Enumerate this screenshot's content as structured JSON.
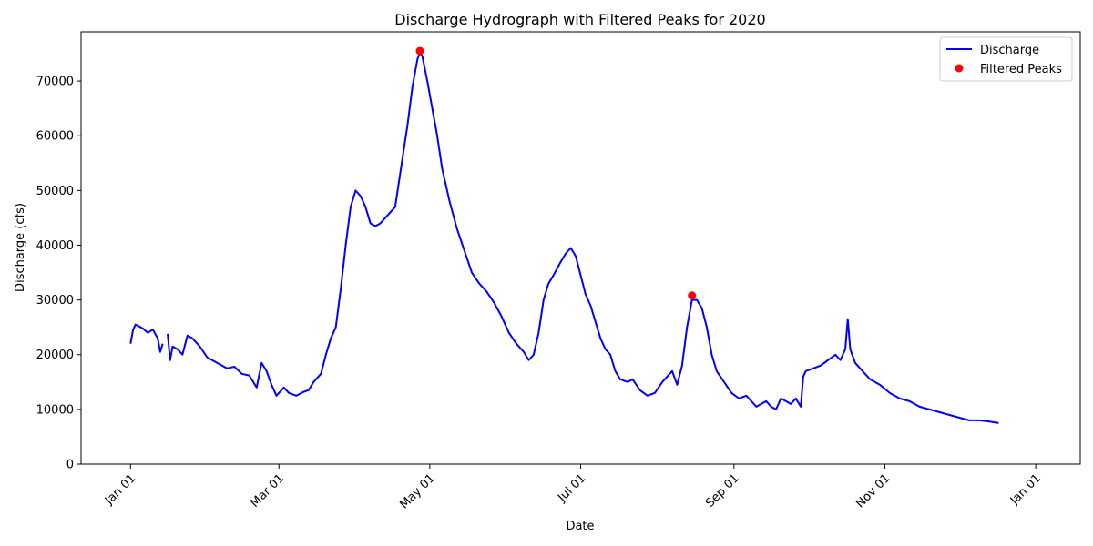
{
  "chart_data": {
    "type": "line",
    "title": "Discharge Hydrograph with Filtered Peaks for 2020",
    "xlabel": "Date",
    "ylabel": "Discharge (cfs)",
    "xlim": [
      "2019-12-12",
      "2021-01-19"
    ],
    "ylim": [
      0,
      79000
    ],
    "grid": false,
    "legend_position": "top-right",
    "x_ticks": [
      {
        "date": "2020-01-01",
        "label": "Jan 01"
      },
      {
        "date": "2020-03-01",
        "label": "Mar 01"
      },
      {
        "date": "2020-05-01",
        "label": "May 01"
      },
      {
        "date": "2020-07-01",
        "label": "Jul 01"
      },
      {
        "date": "2020-09-01",
        "label": "Sep 01"
      },
      {
        "date": "2020-11-01",
        "label": "Nov 01"
      },
      {
        "date": "2021-01-01",
        "label": "Jan 01"
      }
    ],
    "y_ticks": [
      0,
      10000,
      20000,
      30000,
      40000,
      50000,
      60000,
      70000
    ],
    "series": [
      {
        "name": "Discharge",
        "style": "line",
        "color": "#0000ff",
        "segments": [
          [
            [
              "2020-01-01",
              22000
            ],
            [
              "2020-01-02",
              24500
            ],
            [
              "2020-01-03",
              25500
            ],
            [
              "2020-01-06",
              24800
            ],
            [
              "2020-01-08",
              24000
            ],
            [
              "2020-01-10",
              24600
            ],
            [
              "2020-01-12",
              23000
            ],
            [
              "2020-01-13",
              20500
            ],
            [
              "2020-01-14",
              22000
            ]
          ],
          [
            [
              "2020-01-16",
              23800
            ],
            [
              "2020-01-17",
              19000
            ],
            [
              "2020-01-18",
              21500
            ],
            [
              "2020-01-20",
              21000
            ],
            [
              "2020-01-22",
              20000
            ],
            [
              "2020-01-24",
              23500
            ],
            [
              "2020-01-26",
              23000
            ],
            [
              "2020-01-29",
              21500
            ],
            [
              "2020-02-01",
              19500
            ],
            [
              "2020-02-05",
              18500
            ],
            [
              "2020-02-09",
              17500
            ],
            [
              "2020-02-12",
              17800
            ],
            [
              "2020-02-15",
              16500
            ],
            [
              "2020-02-18",
              16200
            ],
            [
              "2020-02-21",
              14000
            ],
            [
              "2020-02-23",
              18500
            ],
            [
              "2020-02-25",
              17000
            ],
            [
              "2020-02-27",
              14500
            ],
            [
              "2020-02-29",
              12500
            ],
            [
              "2020-03-03",
              14000
            ],
            [
              "2020-03-05",
              13000
            ],
            [
              "2020-03-08",
              12500
            ],
            [
              "2020-03-11",
              13200
            ],
            [
              "2020-03-13",
              13500
            ],
            [
              "2020-03-15",
              15000
            ],
            [
              "2020-03-18",
              16500
            ],
            [
              "2020-03-20",
              20000
            ],
            [
              "2020-03-22",
              23000
            ],
            [
              "2020-03-24",
              25000
            ],
            [
              "2020-03-26",
              32000
            ],
            [
              "2020-03-28",
              40000
            ],
            [
              "2020-03-30",
              47000
            ],
            [
              "2020-04-01",
              50000
            ],
            [
              "2020-04-03",
              49000
            ],
            [
              "2020-04-05",
              47000
            ],
            [
              "2020-04-07",
              44000
            ],
            [
              "2020-04-09",
              43500
            ],
            [
              "2020-04-11",
              44000
            ],
            [
              "2020-04-13",
              45000
            ],
            [
              "2020-04-15",
              46000
            ],
            [
              "2020-04-17",
              47000
            ],
            [
              "2020-04-19",
              53000
            ],
            [
              "2020-04-22",
              62000
            ],
            [
              "2020-04-24",
              69000
            ],
            [
              "2020-04-26",
              74000
            ],
            [
              "2020-04-27",
              75200
            ],
            [
              "2020-04-28",
              74500
            ],
            [
              "2020-04-30",
              70000
            ],
            [
              "2020-05-02",
              65000
            ],
            [
              "2020-05-04",
              60000
            ],
            [
              "2020-05-06",
              54000
            ],
            [
              "2020-05-09",
              48000
            ],
            [
              "2020-05-12",
              43000
            ],
            [
              "2020-05-15",
              39000
            ],
            [
              "2020-05-18",
              35000
            ],
            [
              "2020-05-21",
              33000
            ],
            [
              "2020-05-24",
              31500
            ],
            [
              "2020-05-27",
              29500
            ],
            [
              "2020-05-30",
              27000
            ],
            [
              "2020-06-02",
              24000
            ],
            [
              "2020-06-05",
              22000
            ],
            [
              "2020-06-08",
              20500
            ],
            [
              "2020-06-10",
              19000
            ],
            [
              "2020-06-12",
              20000
            ],
            [
              "2020-06-14",
              24000
            ],
            [
              "2020-06-16",
              30000
            ],
            [
              "2020-06-18",
              33000
            ],
            [
              "2020-06-20",
              34500
            ],
            [
              "2020-06-23",
              37000
            ],
            [
              "2020-06-25",
              38500
            ],
            [
              "2020-06-27",
              39500
            ],
            [
              "2020-06-29",
              38000
            ],
            [
              "2020-07-01",
              34500
            ],
            [
              "2020-07-03",
              31000
            ],
            [
              "2020-07-05",
              29000
            ],
            [
              "2020-07-07",
              26000
            ],
            [
              "2020-07-09",
              23000
            ],
            [
              "2020-07-11",
              21000
            ],
            [
              "2020-07-13",
              20000
            ],
            [
              "2020-07-15",
              17000
            ],
            [
              "2020-07-17",
              15500
            ],
            [
              "2020-07-20",
              15000
            ],
            [
              "2020-07-22",
              15500
            ],
            [
              "2020-07-25",
              13500
            ],
            [
              "2020-07-28",
              12500
            ],
            [
              "2020-07-31",
              13000
            ],
            [
              "2020-08-03",
              15000
            ],
            [
              "2020-08-05",
              16000
            ],
            [
              "2020-08-07",
              17000
            ],
            [
              "2020-08-09",
              14500
            ],
            [
              "2020-08-11",
              18000
            ],
            [
              "2020-08-13",
              25000
            ],
            [
              "2020-08-15",
              30000
            ],
            [
              "2020-08-17",
              30000
            ],
            [
              "2020-08-19",
              28500
            ],
            [
              "2020-08-21",
              25000
            ],
            [
              "2020-08-23",
              20000
            ],
            [
              "2020-08-25",
              17000
            ],
            [
              "2020-08-28",
              15000
            ],
            [
              "2020-08-31",
              13000
            ],
            [
              "2020-09-03",
              12000
            ],
            [
              "2020-09-06",
              12500
            ],
            [
              "2020-09-08",
              11500
            ],
            [
              "2020-09-10",
              10500
            ],
            [
              "2020-09-12",
              11000
            ],
            [
              "2020-09-14",
              11500
            ],
            [
              "2020-09-16",
              10500
            ],
            [
              "2020-09-18",
              10000
            ],
            [
              "2020-09-20",
              12000
            ],
            [
              "2020-09-22",
              11500
            ],
            [
              "2020-09-24",
              11000
            ],
            [
              "2020-09-26",
              12000
            ],
            [
              "2020-09-28",
              10500
            ],
            [
              "2020-09-29",
              16000
            ],
            [
              "2020-09-30",
              17000
            ],
            [
              "2020-10-03",
              17500
            ],
            [
              "2020-10-06",
              18000
            ],
            [
              "2020-10-09",
              19000
            ],
            [
              "2020-10-12",
              20000
            ],
            [
              "2020-10-14",
              19000
            ],
            [
              "2020-10-16",
              21000
            ],
            [
              "2020-10-17",
              26500
            ],
            [
              "2020-10-18",
              21000
            ],
            [
              "2020-10-20",
              18500
            ],
            [
              "2020-10-23",
              17000
            ],
            [
              "2020-10-26",
              15500
            ],
            [
              "2020-10-30",
              14500
            ],
            [
              "2020-11-03",
              13000
            ],
            [
              "2020-11-07",
              12000
            ],
            [
              "2020-11-11",
              11500
            ],
            [
              "2020-11-15",
              10500
            ],
            [
              "2020-11-19",
              10000
            ],
            [
              "2020-11-23",
              9500
            ],
            [
              "2020-11-27",
              9000
            ],
            [
              "2020-12-01",
              8500
            ],
            [
              "2020-12-05",
              8000
            ],
            [
              "2020-12-09",
              8000
            ],
            [
              "2020-12-13",
              7800
            ],
            [
              "2020-12-17",
              7500
            ]
          ]
        ]
      },
      {
        "name": "Filtered Peaks",
        "style": "markers",
        "color": "#ff0000",
        "points": [
          [
            "2020-04-27",
            75500
          ],
          [
            "2020-08-15",
            30800
          ]
        ]
      }
    ]
  }
}
